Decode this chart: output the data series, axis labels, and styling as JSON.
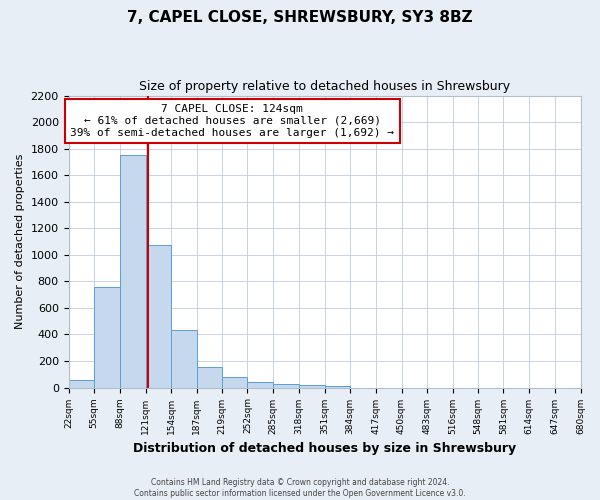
{
  "title": "7, CAPEL CLOSE, SHREWSBURY, SY3 8BZ",
  "subtitle": "Size of property relative to detached houses in Shrewsbury",
  "xlabel": "Distribution of detached houses by size in Shrewsbury",
  "ylabel": "Number of detached properties",
  "bar_edges": [
    22,
    55,
    88,
    121,
    154,
    187,
    219,
    252,
    285,
    318,
    351,
    384,
    417,
    450,
    483,
    516,
    548,
    581,
    614,
    647,
    680
  ],
  "bar_heights": [
    60,
    760,
    1750,
    1075,
    430,
    155,
    80,
    40,
    25,
    20,
    15,
    0,
    0,
    0,
    0,
    0,
    0,
    0,
    0,
    0
  ],
  "tick_labels": [
    "22sqm",
    "55sqm",
    "88sqm",
    "121sqm",
    "154sqm",
    "187sqm",
    "219sqm",
    "252sqm",
    "285sqm",
    "318sqm",
    "351sqm",
    "384sqm",
    "417sqm",
    "450sqm",
    "483sqm",
    "516sqm",
    "548sqm",
    "581sqm",
    "614sqm",
    "647sqm",
    "680sqm"
  ],
  "bar_color": "#c5d8ed",
  "bar_edge_color": "#5a9fd4",
  "vline_x": 124,
  "vline_color": "#cc0000",
  "annotation_title": "7 CAPEL CLOSE: 124sqm",
  "annotation_line1": "← 61% of detached houses are smaller (2,669)",
  "annotation_line2": "39% of semi-detached houses are larger (1,692) →",
  "annotation_box_color": "#cc0000",
  "ylim": [
    0,
    2200
  ],
  "yticks": [
    0,
    200,
    400,
    600,
    800,
    1000,
    1200,
    1400,
    1600,
    1800,
    2000,
    2200
  ],
  "footer1": "Contains HM Land Registry data © Crown copyright and database right 2024.",
  "footer2": "Contains public sector information licensed under the Open Government Licence v3.0.",
  "bg_color": "#e8eef6",
  "plot_bg_color": "#ffffff",
  "title_fontsize": 11,
  "subtitle_fontsize": 9,
  "annotation_fontsize": 8,
  "ylabel_fontsize": 8,
  "xlabel_fontsize": 9,
  "tick_fontsize": 6.5
}
